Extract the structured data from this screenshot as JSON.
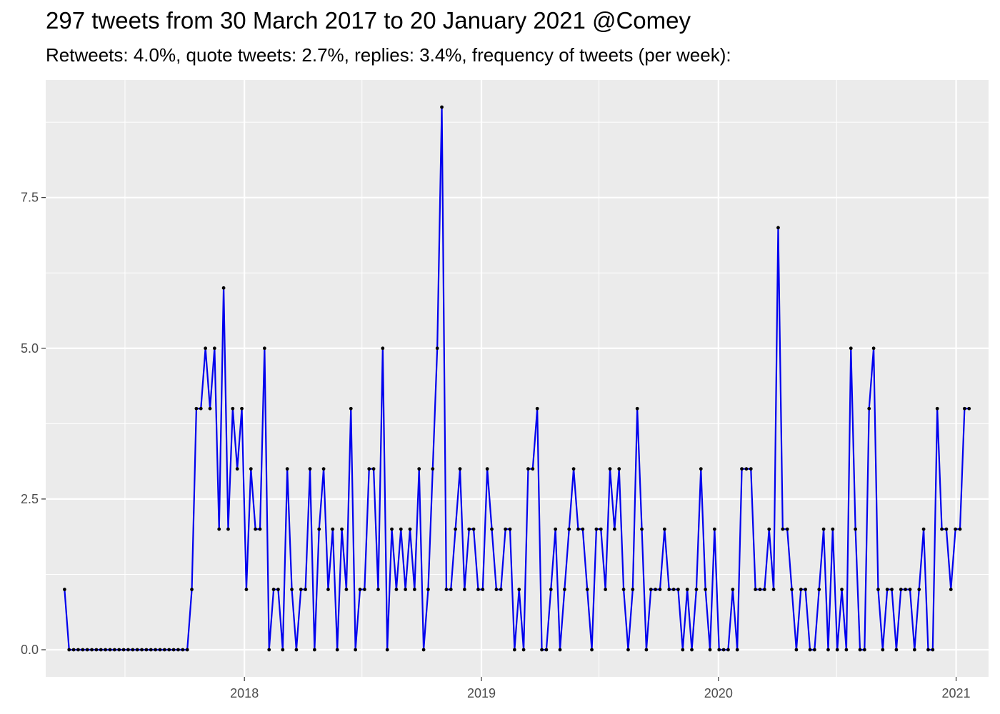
{
  "colors": {
    "panel": "#ebebeb",
    "grid": "#ffffff",
    "line": "#0000ee",
    "point": "#000000",
    "tick_text": "#4d4d4d"
  },
  "chart_data": {
    "type": "line",
    "title": "297 tweets from 30 March 2017 to 20 January 2021 @Comey",
    "subtitle": "Retweets: 4.0%, quote tweets: 2.7%, replies: 3.4%, frequency of tweets (per week):",
    "xlabel": "",
    "ylabel": "",
    "x_axis_type": "date",
    "xlim": [
      "2017-03-01",
      "2021-02-20"
    ],
    "ylim": [
      -0.45,
      9.45
    ],
    "x_ticks": [
      {
        "label": "2018",
        "date": "2018-01-01"
      },
      {
        "label": "2019",
        "date": "2019-01-01"
      },
      {
        "label": "2020",
        "date": "2020-01-01"
      },
      {
        "label": "2021",
        "date": "2021-01-01"
      }
    ],
    "x_minor_breaks": [
      "2017-07-01",
      "2018-07-01",
      "2019-07-01",
      "2020-07-01"
    ],
    "y_ticks": [
      {
        "label": "0.0",
        "value": 0
      },
      {
        "label": "2.5",
        "value": 2.5
      },
      {
        "label": "5.0",
        "value": 5
      },
      {
        "label": "7.5",
        "value": 7.5
      }
    ],
    "y_minor_breaks": [
      1.25,
      3.75,
      6.25,
      8.75
    ],
    "grid": true,
    "legend": "none",
    "series": [
      {
        "start_date": "2017-03-30",
        "interval_days": 7,
        "values": [
          1,
          0,
          0,
          0,
          0,
          0,
          0,
          0,
          0,
          0,
          0,
          0,
          0,
          0,
          0,
          0,
          0,
          0,
          0,
          0,
          0,
          0,
          0,
          0,
          0,
          0,
          0,
          0,
          1,
          4,
          4,
          5,
          4,
          5,
          2,
          6,
          2,
          4,
          3,
          4,
          1,
          3,
          2,
          2,
          5,
          0,
          1,
          1,
          0,
          3,
          1,
          0,
          1,
          1,
          3,
          0,
          2,
          3,
          1,
          2,
          0,
          2,
          1,
          4,
          0,
          1,
          1,
          3,
          3,
          1,
          5,
          0,
          2,
          1,
          2,
          1,
          2,
          1,
          3,
          0,
          1,
          3,
          5,
          9,
          1,
          1,
          2,
          3,
          1,
          2,
          2,
          1,
          1,
          3,
          2,
          1,
          1,
          2,
          2,
          0,
          1,
          0,
          3,
          3,
          4,
          0,
          0,
          1,
          2,
          0,
          1,
          2,
          3,
          2,
          2,
          1,
          0,
          2,
          2,
          1,
          3,
          2,
          3,
          1,
          0,
          1,
          4,
          2,
          0,
          1,
          1,
          1,
          2,
          1,
          1,
          1,
          0,
          1,
          0,
          1,
          3,
          1,
          0,
          2,
          0,
          0,
          0,
          1,
          0,
          3,
          3,
          3,
          1,
          1,
          1,
          2,
          1,
          7,
          2,
          2,
          1,
          0,
          1,
          1,
          0,
          0,
          1,
          2,
          0,
          2,
          0,
          1,
          0,
          5,
          2,
          0,
          0,
          4,
          5,
          1,
          0,
          1,
          1,
          0,
          1,
          1,
          1,
          0,
          1,
          2,
          0,
          0,
          4,
          2,
          2,
          1,
          2,
          2,
          4,
          4
        ]
      }
    ]
  }
}
